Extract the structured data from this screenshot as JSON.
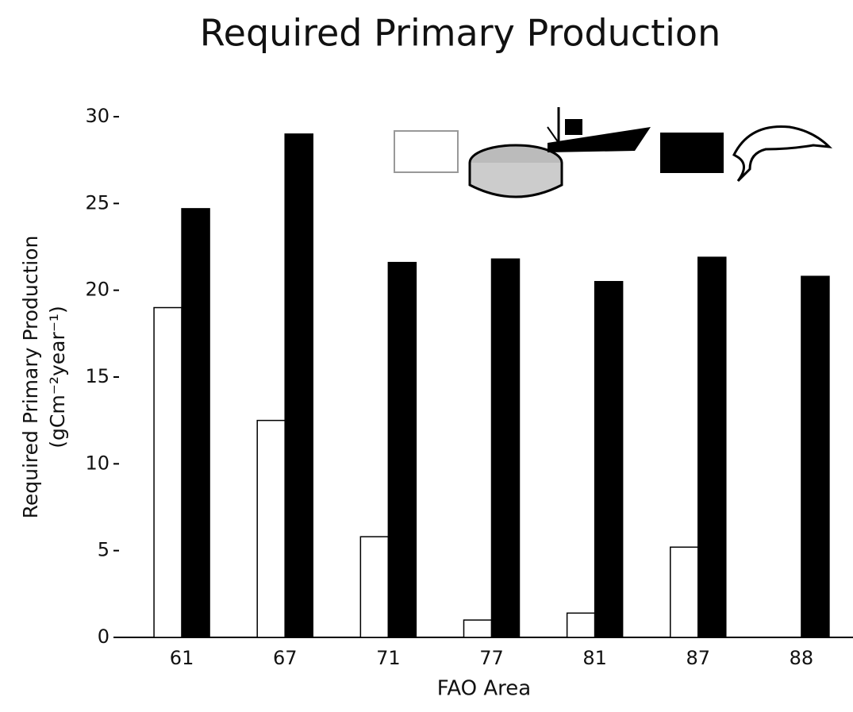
{
  "chart_data": {
    "type": "bar",
    "title": "Required Primary Production",
    "xlabel": "FAO Area",
    "ylabel": [
      "Required Primary Production",
      "(gCm⁻²year⁻¹)"
    ],
    "categories": [
      "61",
      "67",
      "71",
      "77",
      "81",
      "87",
      "88"
    ],
    "series": [
      {
        "color": "#ffffff",
        "values": [
          19.0,
          12.5,
          5.8,
          1.0,
          1.4,
          5.2,
          0
        ]
      },
      {
        "color": "#000000",
        "values": [
          24.7,
          29.0,
          21.6,
          21.8,
          20.5,
          21.9,
          20.8
        ]
      }
    ],
    "ylim": [
      0,
      30
    ],
    "yticks": [
      0,
      5,
      10,
      15,
      20,
      25,
      30
    ]
  }
}
